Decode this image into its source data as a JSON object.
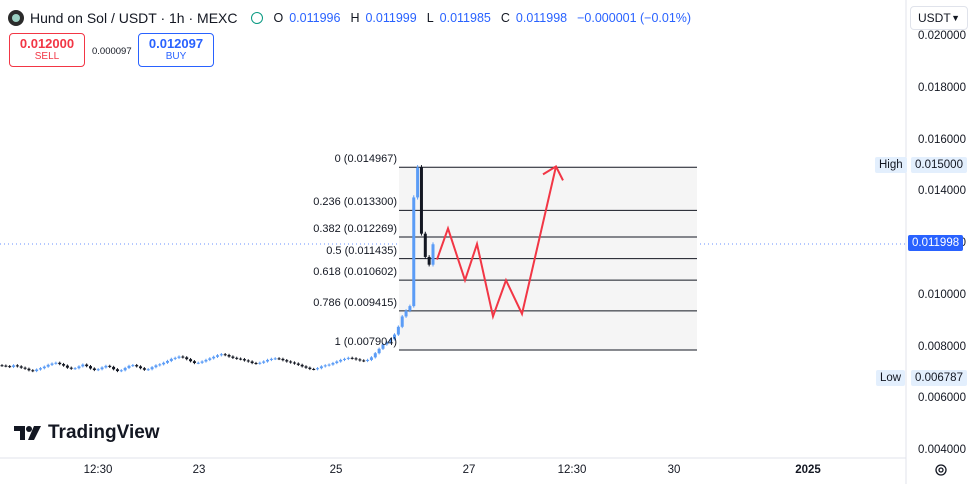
{
  "header": {
    "symbol": "Hund on Sol / USDT · 1h · MEXC",
    "o_label": "O",
    "o_value": "0.011996",
    "h_label": "H",
    "h_value": "0.011999",
    "l_label": "L",
    "l_value": "0.011985",
    "c_label": "C",
    "c_value": "0.011998",
    "change": "−0.000001 (−0.01%)"
  },
  "trade": {
    "sell_price": "0.012000",
    "sell_label": "SELL",
    "spread": "0.000097",
    "buy_price": "0.012097",
    "buy_label": "BUY"
  },
  "currency_selector": "USDT",
  "branding": "TradingView",
  "colors": {
    "up": "#5b9cf6",
    "down": "#131722",
    "arrow": "#f23645",
    "accent": "#2962ff"
  },
  "chart_data": {
    "type": "candlestick",
    "price_axis": {
      "ticks": [
        "0.020000",
        "0.018000",
        "0.016000",
        "0.014000",
        "0.012000",
        "0.010000",
        "0.008000",
        "0.006000",
        "0.004000"
      ],
      "range": [
        0.0037,
        0.0212
      ]
    },
    "time_axis": {
      "ticks": [
        "12:30",
        "23",
        "25",
        "27",
        "12:30",
        "30",
        "2025"
      ]
    },
    "last_price": "0.011998",
    "high": {
      "label": "High",
      "value": "0.015000"
    },
    "low": {
      "label": "Low",
      "value": "0.006787"
    },
    "fibonacci": {
      "levels": [
        {
          "ratio": "0",
          "price": "0.014967"
        },
        {
          "ratio": "0.236",
          "price": "0.013300"
        },
        {
          "ratio": "0.382",
          "price": "0.012269"
        },
        {
          "ratio": "0.5",
          "price": "0.011435"
        },
        {
          "ratio": "0.618",
          "price": "0.010602"
        },
        {
          "ratio": "0.786",
          "price": "0.009415"
        },
        {
          "ratio": "1",
          "price": "0.007904"
        }
      ]
    },
    "projection_path": [
      0.0114,
      0.0126,
      0.0106,
      0.012,
      0.0092,
      0.0106,
      0.0093,
      0.015
    ],
    "series": [
      {
        "values": [
          0.0073,
          0.00728,
          0.00725,
          0.00731,
          0.00727,
          0.00722,
          0.00718,
          0.00712,
          0.00709,
          0.00715,
          0.0072,
          0.00726,
          0.00733,
          0.00738,
          0.00741,
          0.00736,
          0.0073,
          0.00722,
          0.00718,
          0.0072,
          0.00727,
          0.00734,
          0.00728,
          0.00719,
          0.00713,
          0.00716,
          0.00723,
          0.00729,
          0.00725,
          0.00716,
          0.00709,
          0.00712,
          0.00721,
          0.00729,
          0.00732,
          0.00727,
          0.0072,
          0.00714,
          0.00716,
          0.00724,
          0.00731,
          0.00735,
          0.00741,
          0.00748,
          0.00756,
          0.0076,
          0.00765,
          0.00762,
          0.00755,
          0.00747,
          0.0074,
          0.00741,
          0.00746,
          0.00752,
          0.00758,
          0.00764,
          0.0077,
          0.00774,
          0.00771,
          0.00765,
          0.0076,
          0.00757,
          0.00755,
          0.0075,
          0.00746,
          0.0074,
          0.00738,
          0.00741,
          0.00746,
          0.00752,
          0.00756,
          0.00758,
          0.00756,
          0.00751,
          0.00746,
          0.00742,
          0.00738,
          0.00733,
          0.00727,
          0.00722,
          0.00717,
          0.00716,
          0.0072,
          0.00727,
          0.00731,
          0.00734,
          0.0074,
          0.00746,
          0.00752,
          0.00756,
          0.0076,
          0.00758,
          0.00754,
          0.0075,
          0.00748,
          0.00752,
          0.00762,
          0.00778,
          0.00795,
          0.00812,
          0.0082,
          0.00832,
          0.0085,
          0.0088,
          0.0092,
          0.00942,
          0.0096,
          0.0138,
          0.01496,
          0.0124,
          0.0115,
          0.0112,
          0.01199
        ]
      }
    ]
  }
}
